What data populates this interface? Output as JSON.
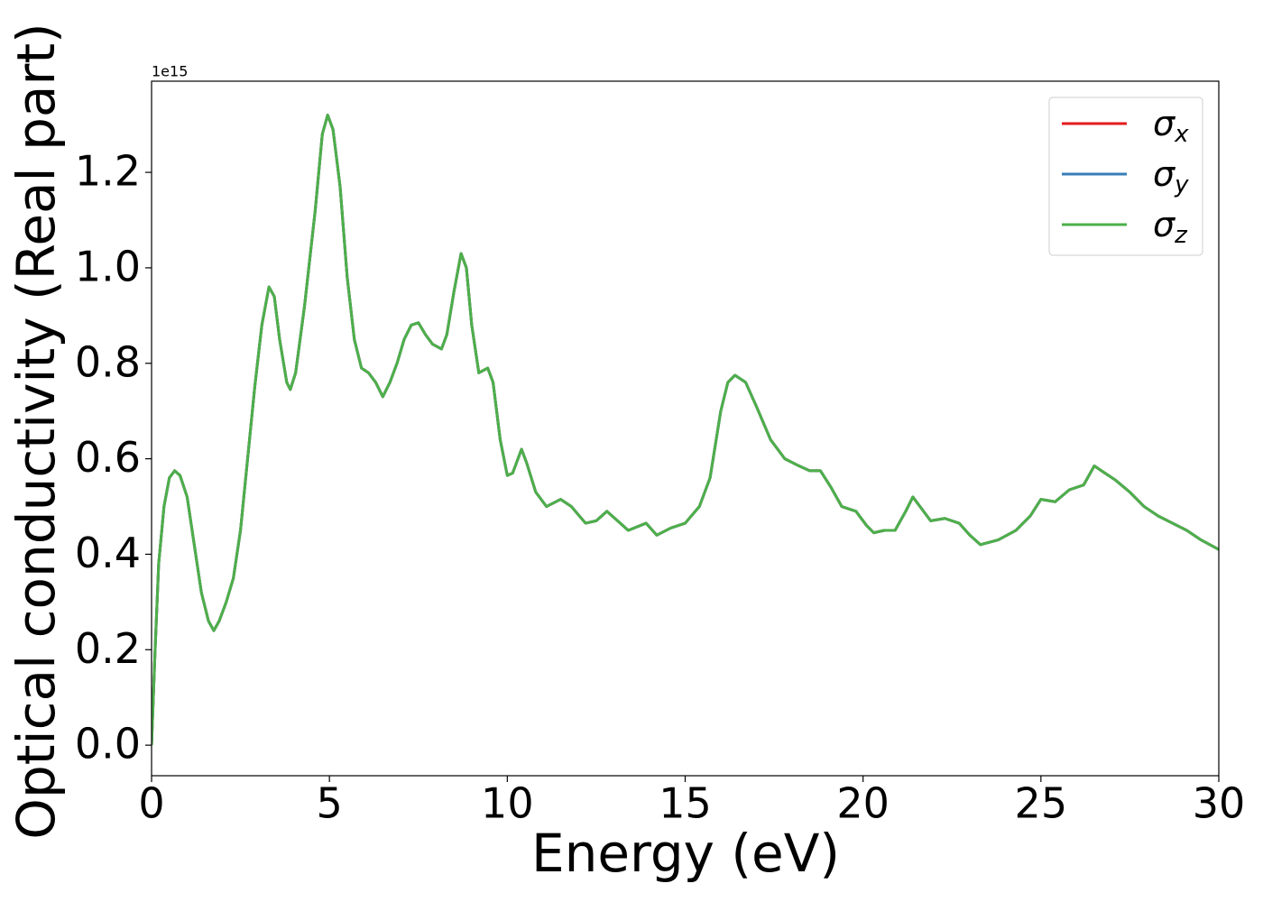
{
  "chart_data": {
    "type": "line",
    "xlabel": "Energy (eV)",
    "ylabel": "Optical conductivity (Real part)",
    "y_offset_text": "1e15",
    "xlim": [
      0,
      30
    ],
    "ylim": [
      -0.064,
      1.391
    ],
    "xticks": [
      0,
      5,
      10,
      15,
      20,
      25,
      30
    ],
    "yticks": [
      {
        "value": 0,
        "label": "0.0"
      },
      0.2,
      0.4,
      0.6,
      0.8,
      {
        "value": 1,
        "label": "1.0"
      },
      1.2
    ],
    "legend": "upper right",
    "grid": false,
    "x": [
      0,
      0.1,
      0.2,
      0.35,
      0.5,
      0.65,
      0.8,
      1.0,
      1.2,
      1.4,
      1.6,
      1.75,
      1.9,
      2.1,
      2.3,
      2.5,
      2.7,
      2.9,
      3.1,
      3.3,
      3.45,
      3.6,
      3.8,
      3.9,
      4.05,
      4.3,
      4.6,
      4.8,
      4.95,
      5.1,
      5.3,
      5.5,
      5.7,
      5.9,
      6.1,
      6.3,
      6.5,
      6.7,
      6.9,
      7.1,
      7.3,
      7.5,
      7.7,
      7.9,
      8.15,
      8.3,
      8.5,
      8.7,
      8.85,
      9.0,
      9.2,
      9.45,
      9.6,
      9.8,
      10.0,
      10.15,
      10.4,
      10.55,
      10.8,
      11.1,
      11.5,
      11.8,
      12.2,
      12.5,
      12.8,
      13.1,
      13.4,
      13.9,
      14.2,
      14.6,
      15.0,
      15.4,
      15.7,
      16.0,
      16.2,
      16.4,
      16.7,
      17.0,
      17.4,
      17.8,
      18.2,
      18.5,
      18.8,
      19.1,
      19.4,
      19.8,
      20.1,
      20.3,
      20.6,
      20.9,
      21.2,
      21.4,
      21.6,
      21.9,
      22.3,
      22.7,
      23.0,
      23.3,
      23.8,
      24.3,
      24.7,
      25.0,
      25.4,
      25.8,
      26.2,
      26.5,
      26.8,
      27.1,
      27.5,
      27.9,
      28.3,
      28.7,
      29.1,
      29.5,
      30.0
    ],
    "series": [
      {
        "name": "σx",
        "color": "#e41a1c",
        "values": [
          0.0,
          0.2,
          0.38,
          0.5,
          0.56,
          0.575,
          0.565,
          0.52,
          0.42,
          0.32,
          0.26,
          0.24,
          0.26,
          0.3,
          0.35,
          0.45,
          0.6,
          0.75,
          0.88,
          0.96,
          0.94,
          0.85,
          0.76,
          0.745,
          0.78,
          0.92,
          1.12,
          1.28,
          1.32,
          1.29,
          1.17,
          0.98,
          0.85,
          0.79,
          0.78,
          0.76,
          0.73,
          0.76,
          0.8,
          0.85,
          0.88,
          0.885,
          0.86,
          0.84,
          0.83,
          0.86,
          0.95,
          1.03,
          1.0,
          0.88,
          0.78,
          0.79,
          0.76,
          0.64,
          0.565,
          0.57,
          0.62,
          0.59,
          0.53,
          0.5,
          0.515,
          0.5,
          0.465,
          0.47,
          0.49,
          0.47,
          0.45,
          0.465,
          0.44,
          0.455,
          0.465,
          0.5,
          0.56,
          0.7,
          0.76,
          0.775,
          0.76,
          0.71,
          0.64,
          0.6,
          0.585,
          0.575,
          0.575,
          0.54,
          0.5,
          0.49,
          0.46,
          0.445,
          0.45,
          0.45,
          0.49,
          0.52,
          0.5,
          0.47,
          0.475,
          0.465,
          0.44,
          0.42,
          0.43,
          0.45,
          0.48,
          0.515,
          0.51,
          0.535,
          0.545,
          0.585,
          0.57,
          0.555,
          0.53,
          0.5,
          0.48,
          0.465,
          0.45,
          0.43,
          0.41
        ]
      },
      {
        "name": "σy",
        "color": "#377eb8",
        "values": [
          0.0,
          0.2,
          0.38,
          0.5,
          0.56,
          0.575,
          0.565,
          0.52,
          0.42,
          0.32,
          0.26,
          0.24,
          0.26,
          0.3,
          0.35,
          0.45,
          0.6,
          0.75,
          0.88,
          0.96,
          0.94,
          0.85,
          0.76,
          0.745,
          0.78,
          0.92,
          1.12,
          1.28,
          1.32,
          1.29,
          1.17,
          0.98,
          0.85,
          0.79,
          0.78,
          0.76,
          0.73,
          0.76,
          0.8,
          0.85,
          0.88,
          0.885,
          0.86,
          0.84,
          0.83,
          0.86,
          0.95,
          1.03,
          1.0,
          0.88,
          0.78,
          0.79,
          0.76,
          0.64,
          0.565,
          0.57,
          0.62,
          0.59,
          0.53,
          0.5,
          0.515,
          0.5,
          0.465,
          0.47,
          0.49,
          0.47,
          0.45,
          0.465,
          0.44,
          0.455,
          0.465,
          0.5,
          0.56,
          0.7,
          0.76,
          0.775,
          0.76,
          0.71,
          0.64,
          0.6,
          0.585,
          0.575,
          0.575,
          0.54,
          0.5,
          0.49,
          0.46,
          0.445,
          0.45,
          0.45,
          0.49,
          0.52,
          0.5,
          0.47,
          0.475,
          0.465,
          0.44,
          0.42,
          0.43,
          0.45,
          0.48,
          0.515,
          0.51,
          0.535,
          0.545,
          0.585,
          0.57,
          0.555,
          0.53,
          0.5,
          0.48,
          0.465,
          0.45,
          0.43,
          0.41
        ]
      },
      {
        "name": "σz",
        "color": "#4daf4a",
        "values": [
          0.0,
          0.2,
          0.38,
          0.5,
          0.56,
          0.575,
          0.565,
          0.52,
          0.42,
          0.32,
          0.26,
          0.24,
          0.26,
          0.3,
          0.35,
          0.45,
          0.6,
          0.75,
          0.88,
          0.96,
          0.94,
          0.85,
          0.76,
          0.745,
          0.78,
          0.92,
          1.12,
          1.28,
          1.32,
          1.29,
          1.17,
          0.98,
          0.85,
          0.79,
          0.78,
          0.76,
          0.73,
          0.76,
          0.8,
          0.85,
          0.88,
          0.885,
          0.86,
          0.84,
          0.83,
          0.86,
          0.95,
          1.03,
          1.0,
          0.88,
          0.78,
          0.79,
          0.76,
          0.64,
          0.565,
          0.57,
          0.62,
          0.59,
          0.53,
          0.5,
          0.515,
          0.5,
          0.465,
          0.47,
          0.49,
          0.47,
          0.45,
          0.465,
          0.44,
          0.455,
          0.465,
          0.5,
          0.56,
          0.7,
          0.76,
          0.775,
          0.76,
          0.71,
          0.64,
          0.6,
          0.585,
          0.575,
          0.575,
          0.54,
          0.5,
          0.49,
          0.46,
          0.445,
          0.45,
          0.45,
          0.49,
          0.52,
          0.5,
          0.47,
          0.475,
          0.465,
          0.44,
          0.42,
          0.43,
          0.45,
          0.48,
          0.515,
          0.51,
          0.535,
          0.545,
          0.585,
          0.57,
          0.555,
          0.53,
          0.5,
          0.48,
          0.465,
          0.45,
          0.43,
          0.41
        ]
      }
    ]
  }
}
